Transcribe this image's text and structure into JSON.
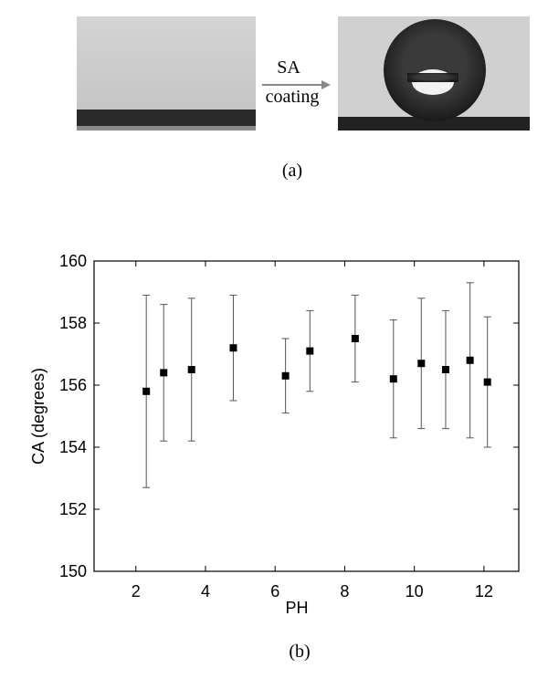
{
  "figure": {
    "arrow_top": "SA",
    "arrow_bottom": "coating",
    "panel_a": "(a)",
    "panel_b": "(b)"
  },
  "chart_data": {
    "type": "scatter",
    "xlabel": "PH",
    "ylabel": "CA (degrees)",
    "x": [
      2.3,
      2.8,
      3.6,
      4.8,
      6.3,
      7.0,
      8.3,
      9.4,
      10.2,
      10.9,
      11.6,
      12.1
    ],
    "series": [
      {
        "color": "#000000",
        "values": [
          155.8,
          156.4,
          156.5,
          157.2,
          156.3,
          157.1,
          157.5,
          156.2,
          156.7,
          156.5,
          156.8,
          156.1
        ],
        "errors": [
          3.1,
          2.2,
          2.3,
          1.7,
          1.2,
          1.3,
          1.4,
          1.9,
          2.1,
          1.9,
          2.5,
          2.1
        ]
      }
    ],
    "xlim": [
      0.8,
      13.0
    ],
    "xticks": [
      2,
      4,
      6,
      8,
      10,
      12
    ],
    "ylim": [
      150,
      160
    ],
    "yticks": [
      150,
      152,
      154,
      156,
      158,
      160
    ]
  }
}
